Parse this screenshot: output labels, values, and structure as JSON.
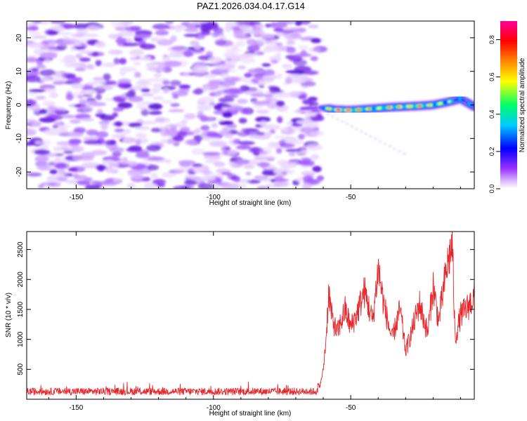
{
  "figure_title": "PAZ1.2026.034.04.17.G14",
  "chart_data": [
    {
      "type": "heatmap",
      "title": "PAZ1.2026.034.04.17.G14",
      "xlabel": "Height of straight line (km)",
      "ylabel": "Frequency (Hz)",
      "xlim": [
        -168,
        -5
      ],
      "ylim": [
        -25,
        25
      ],
      "xticks": [
        -150,
        -100,
        -50
      ],
      "yticks": [
        20,
        10,
        0,
        -10,
        -20
      ],
      "xtick_labels": [
        "-150",
        "-100",
        "-50"
      ],
      "ytick_labels": [
        "20",
        "10",
        "0",
        "-10",
        "-20"
      ],
      "noise_region_x": [
        -168,
        -61
      ],
      "signal_track": {
        "x": [
          -61,
          -55,
          -50,
          -45,
          -40,
          -35,
          -30,
          -25,
          -20,
          -15,
          -10,
          -5
        ],
        "y": [
          -0.8,
          -1.5,
          -1.6,
          -1.3,
          -1.0,
          -0.7,
          -0.5,
          -0.3,
          0.0,
          0.8,
          1.8,
          -0.5
        ],
        "amplitude": [
          0.5,
          0.9,
          0.85,
          0.75,
          0.6,
          0.8,
          0.7,
          0.8,
          0.65,
          0.6,
          0.4,
          0.35
        ]
      },
      "colorbar": {
        "label": "Normalized spectral amplitude",
        "range": [
          0.0,
          0.9
        ],
        "ticks": [
          0.0,
          0.2,
          0.4,
          0.6,
          0.8
        ],
        "tick_labels": [
          "0.0",
          "0.2",
          "0.4",
          "0.6",
          "0.8"
        ],
        "colors": [
          "#ffffff",
          "#9933ff",
          "#0000ff",
          "#00ccff",
          "#00ff66",
          "#ffff00",
          "#ff8800",
          "#ff0000",
          "#ff0099"
        ]
      }
    },
    {
      "type": "line",
      "xlabel": "Height of straight line (km)",
      "ylabel": "SNR (10 * v/v)",
      "xlim": [
        -168,
        -5
      ],
      "ylim": [
        0,
        2800
      ],
      "xticks": [
        -150,
        -100,
        -50
      ],
      "yticks": [
        500,
        1000,
        1500,
        2000,
        2500
      ],
      "xtick_labels": [
        "-150",
        "-100",
        "-50"
      ],
      "ytick_labels": [
        "500",
        "1000",
        "1500",
        "2000",
        "2500"
      ],
      "color": "#e8262a",
      "series": [
        {
          "name": "SNR",
          "noise_floor": {
            "x": [
              -168,
              -62
            ],
            "mean": 130,
            "spread": 120
          },
          "x": [
            -168,
            -150,
            -120,
            -100,
            -80,
            -63,
            -61,
            -60,
            -59,
            -58,
            -57,
            -55,
            -52,
            -50,
            -48,
            -45,
            -42,
            -40,
            -38,
            -35,
            -32,
            -30,
            -28,
            -25,
            -22,
            -20,
            -18,
            -15,
            -13,
            -12,
            -10,
            -8,
            -5
          ],
          "y": [
            150,
            140,
            135,
            140,
            145,
            200,
            250,
            500,
            1000,
            1800,
            1400,
            1100,
            1500,
            1200,
            1400,
            1800,
            1300,
            2200,
            1600,
            1000,
            1500,
            800,
            1100,
            1600,
            1100,
            1900,
            1300,
            2200,
            2600,
            1000,
            1400,
            1500,
            1700
          ]
        }
      ]
    }
  ]
}
